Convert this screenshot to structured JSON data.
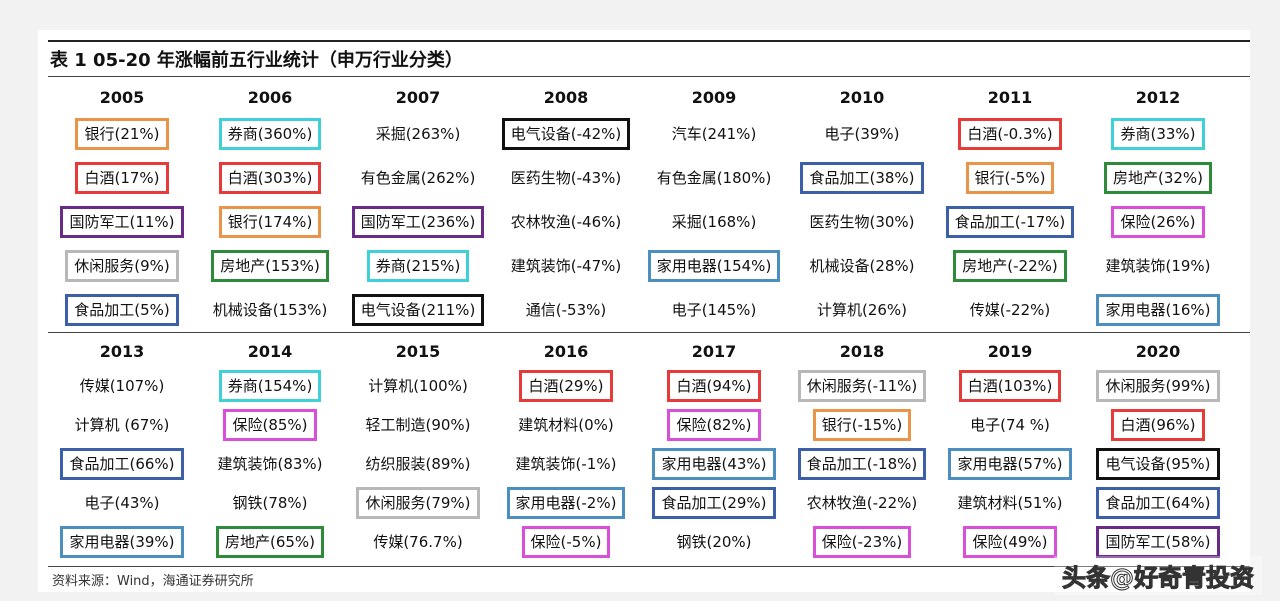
{
  "title": "表 1  05-20 年涨幅前五行业统计（申万行业分类）",
  "table": {
    "top": {
      "years": [
        "2005",
        "2006",
        "2007",
        "2008",
        "2009",
        "2010",
        "2011",
        "2012"
      ],
      "rows": [
        [
          {
            "text": "银行(21%)",
            "box": "#e8954a"
          },
          {
            "text": "券商(360%)",
            "box": "#3fd0d8"
          },
          "采掘(263%)",
          {
            "text": "电气设备(-42%)",
            "box": "#111111"
          },
          "汽车(241%)",
          "电子(39%)",
          {
            "text": "白酒(-0.3%)",
            "box": "#e63b3b"
          },
          {
            "text": "券商(33%)",
            "box": "#3fd0d8"
          }
        ],
        [
          {
            "text": "白酒(17%)",
            "box": "#e63b3b"
          },
          {
            "text": "白酒(303%)",
            "box": "#e63b3b"
          },
          "有色金属(262%)",
          "医药生物(-43%)",
          "有色金属(180%)",
          {
            "text": "食品加工(38%)",
            "box": "#3b5fa8"
          },
          {
            "text": "银行(-5%)",
            "box": "#e8954a"
          },
          {
            "text": "房地产(32%)",
            "box": "#2e8b3a"
          }
        ],
        [
          {
            "text": "国防军工(11%)",
            "box": "#6a2a8a"
          },
          {
            "text": "银行(174%)",
            "box": "#e8954a"
          },
          {
            "text": "国防军工(236%)",
            "box": "#6a2a8a"
          },
          "农林牧渔(-46%)",
          "采掘(168%)",
          "医药生物(30%)",
          {
            "text": "食品加工(-17%)",
            "box": "#3b5fa8"
          },
          {
            "text": "保险(26%)",
            "box": "#d94fd9"
          }
        ],
        [
          {
            "text": "休闲服务(9%)",
            "box": "#b8b8b8"
          },
          {
            "text": "房地产(153%)",
            "box": "#2e8b3a"
          },
          {
            "text": "券商(215%)",
            "box": "#3fd0d8"
          },
          "建筑装饰(-47%)",
          {
            "text": "家用电器(154%)",
            "box": "#4a8fc0"
          },
          "机械设备(28%)",
          {
            "text": "房地产(-22%)",
            "box": "#2e8b3a"
          },
          "建筑装饰(19%)"
        ],
        [
          {
            "text": "食品加工(5%)",
            "box": "#3b5fa8"
          },
          "机械设备(153%)",
          {
            "text": "电气设备(211%)",
            "box": "#111111"
          },
          "通信(-53%)",
          "电子(145%)",
          "计算机(26%)",
          "传媒(-22%)",
          {
            "text": "家用电器(16%)",
            "box": "#4a8fc0"
          }
        ]
      ]
    },
    "bottom": {
      "years": [
        "2013",
        "2014",
        "2015",
        "2016",
        "2017",
        "2018",
        "2019",
        "2020"
      ],
      "rows": [
        [
          "传媒(107%)",
          {
            "text": "券商(154%)",
            "box": "#3fd0d8"
          },
          "计算机(100%)",
          {
            "text": "白酒(29%)",
            "box": "#e63b3b"
          },
          {
            "text": "白酒(94%)",
            "box": "#e63b3b"
          },
          {
            "text": "休闲服务(-11%)",
            "box": "#b8b8b8"
          },
          {
            "text": "白酒(103%)",
            "box": "#e63b3b"
          },
          {
            "text": "休闲服务(99%)",
            "box": "#b8b8b8"
          }
        ],
        [
          "计算机 (67%)",
          {
            "text": "保险(85%)",
            "box": "#d94fd9"
          },
          "轻工制造(90%)",
          "建筑材料(0%)",
          {
            "text": "保险(82%)",
            "box": "#d94fd9"
          },
          {
            "text": "银行(-15%)",
            "box": "#e8954a"
          },
          "电子(74 %)",
          {
            "text": "白酒(96%)",
            "box": "#e63b3b"
          }
        ],
        [
          {
            "text": "食品加工(66%)",
            "box": "#3b5fa8"
          },
          "建筑装饰(83%)",
          "纺织服装(89%)",
          "建筑装饰(-1%)",
          {
            "text": "家用电器(43%)",
            "box": "#4a8fc0"
          },
          {
            "text": "食品加工(-18%)",
            "box": "#3b5fa8"
          },
          {
            "text": "家用电器(57%)",
            "box": "#4a8fc0"
          },
          {
            "text": "电气设备(95%)",
            "box": "#111111"
          }
        ],
        [
          "电子(43%)",
          "钢铁(78%)",
          {
            "text": "休闲服务(79%)",
            "box": "#b8b8b8"
          },
          {
            "text": "家用电器(-2%)",
            "box": "#4a8fc0"
          },
          {
            "text": "食品加工(29%)",
            "box": "#3b5fa8"
          },
          "农林牧渔(-22%)",
          "建筑材料(51%)",
          {
            "text": "食品加工(64%)",
            "box": "#3b5fa8"
          }
        ],
        [
          {
            "text": "家用电器(39%)",
            "box": "#4a8fc0"
          },
          {
            "text": "房地产(65%)",
            "box": "#2e8b3a"
          },
          "传媒(76.7%)",
          {
            "text": "保险(-5%)",
            "box": "#d94fd9"
          },
          "钢铁(20%)",
          {
            "text": "保险(-23%)",
            "box": "#d94fd9"
          },
          {
            "text": "保险(49%)",
            "box": "#d94fd9"
          },
          {
            "text": "国防军工(58%)",
            "box": "#6a2a8a"
          }
        ]
      ]
    }
  },
  "source": "资料来源：Wind，海通证券研究所",
  "watermark": "头条@好奇青投资"
}
